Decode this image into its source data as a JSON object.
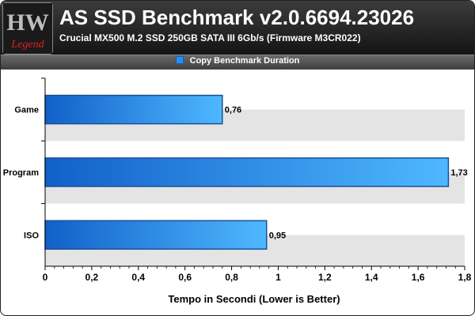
{
  "header": {
    "logo_text": "HW Legend",
    "title": "AS SSD Benchmark v2.0.6694.23026",
    "subtitle": "Crucial MX500 M.2 SSD 250GB SATA III 6Gb/s (Firmware M3CR022)"
  },
  "colors": {
    "bar_light": "#4fb8ff",
    "bar_dark": "#1160c8",
    "bar_stroke": "#1a4f99",
    "band": "#e4e4e4"
  },
  "chart_data": {
    "type": "bar",
    "orientation": "horizontal",
    "title": "",
    "legend": [
      "Copy Benchmark Duration"
    ],
    "legend_position": "top",
    "xlabel": "Tempo in Secondi (Lower is Better)",
    "ylabel": "",
    "xlim": [
      0,
      1.8
    ],
    "xticks": [
      "0",
      "0,2",
      "0,4",
      "0,6",
      "0,8",
      "1",
      "1,2",
      "1,4",
      "1,6",
      "1,8"
    ],
    "categories": [
      "Game",
      "Program",
      "ISO"
    ],
    "series": [
      {
        "name": "Copy Benchmark Duration",
        "values": [
          0.76,
          1.73,
          0.95
        ],
        "labels": [
          "0,76",
          "1,73",
          "0,95"
        ]
      }
    ],
    "grid": false
  }
}
